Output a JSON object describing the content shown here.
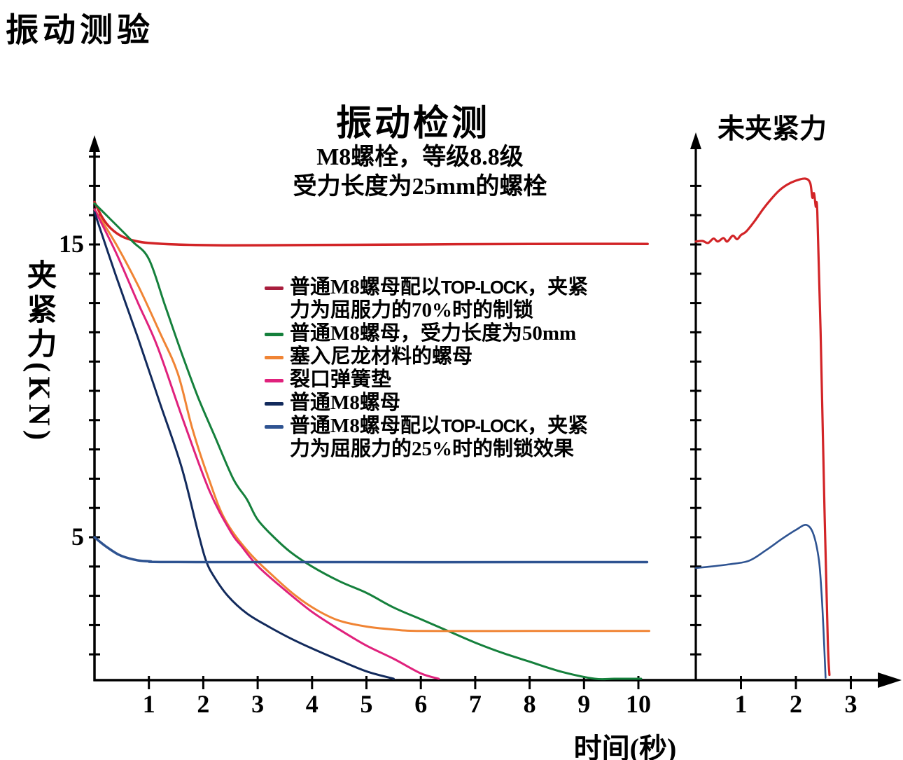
{
  "page_title": "振动测验",
  "main_chart": {
    "title": "振动检测",
    "subtitle_line1": "M8螺栓，等级8.8级",
    "subtitle_line2": "受力长度为25mm的螺栓",
    "y_axis_label": "夹紧力(KN)",
    "x_axis_label": "时间(秒)"
  },
  "right_chart": {
    "title": "未夹紧力"
  },
  "legend": {
    "rows": [
      {
        "color": "#a81e3d",
        "line1": [
          {
            "text": "普通M8螺母配以"
          },
          {
            "logo": "TOP-LOCK"
          },
          {
            "text": "，夹紧"
          }
        ],
        "line2": "力为屈服力的70%时的制锁"
      },
      {
        "color": "#15803c",
        "line1": [
          {
            "text": "普通M8螺母，受力长度为50mm"
          }
        ]
      },
      {
        "color": "#f08434",
        "line1": [
          {
            "text": "塞入尼龙材料的螺母"
          }
        ]
      },
      {
        "color": "#e0217c",
        "line1": [
          {
            "text": "裂口弹簧垫"
          }
        ]
      },
      {
        "color": "#122a5c",
        "line1": [
          {
            "text": "普通M8螺母"
          }
        ]
      },
      {
        "color": "#2e5391",
        "line1": [
          {
            "text": "普通M8螺母配以"
          },
          {
            "logo": "TOP-LOCK"
          },
          {
            "text": "，夹紧"
          }
        ],
        "line2": "力为屈服力的25%时的制锁效果"
      }
    ]
  },
  "chart_data": [
    {
      "type": "line",
      "title": "振动检测",
      "subtitle": "M8螺栓，等级8.8级 受力长度为25mm的螺栓",
      "xlabel": "时间(秒)",
      "ylabel": "夹紧力(KN)",
      "x_range": [
        0,
        10.5
      ],
      "y_range": [
        0,
        18.6
      ],
      "x_ticks": [
        1,
        2,
        3,
        4,
        5,
        6,
        7,
        8,
        9,
        10
      ],
      "y_ticks_labeled": [
        5,
        15
      ],
      "y_tick_minor_step": 1,
      "grid": false,
      "legend_position": "inside-right",
      "series": [
        {
          "name": "普通M8螺母配以TOP-LOCK，夹紧力为屈服力的70%时的制锁",
          "color": "#d22427",
          "width": 3.5,
          "points": [
            [
              0,
              16.45
            ],
            [
              0.15,
              15.9
            ],
            [
              0.3,
              15.55
            ],
            [
              0.5,
              15.28
            ],
            [
              0.75,
              15.12
            ],
            [
              1,
              15.05
            ],
            [
              1.5,
              15.0
            ],
            [
              2.5,
              14.97
            ],
            [
              4,
              14.98
            ],
            [
              6,
              15.0
            ],
            [
              8,
              15.02
            ],
            [
              10.17,
              15.02
            ]
          ]
        },
        {
          "name": "普通M8螺母，受力长度为50mm",
          "color": "#15803c",
          "width": 3,
          "points": [
            [
              0,
              16.4
            ],
            [
              0.3,
              15.85
            ],
            [
              0.7,
              15.1
            ],
            [
              1,
              14.5
            ],
            [
              1.3,
              12.9
            ],
            [
              1.6,
              11.3
            ],
            [
              1.9,
              9.8
            ],
            [
              2.2,
              8.5
            ],
            [
              2.55,
              7.0
            ],
            [
              2.8,
              6.3
            ],
            [
              3,
              5.6
            ],
            [
              3.3,
              5.0
            ],
            [
              3.6,
              4.5
            ],
            [
              4,
              4.0
            ],
            [
              4.5,
              3.5
            ],
            [
              5,
              3.1
            ],
            [
              5.5,
              2.6
            ],
            [
              6,
              2.2
            ],
            [
              6.5,
              1.8
            ],
            [
              7,
              1.4
            ],
            [
              7.5,
              1.05
            ],
            [
              8,
              0.75
            ],
            [
              8.6,
              0.4
            ],
            [
              9.2,
              0.12
            ],
            [
              9.56,
              0
            ],
            [
              10.05,
              0
            ]
          ]
        },
        {
          "name": "塞入尼龙材料的螺母",
          "color": "#f08434",
          "width": 3,
          "points": [
            [
              0,
              16.2
            ],
            [
              0.4,
              15.0
            ],
            [
              0.8,
              13.6
            ],
            [
              1.2,
              12.0
            ],
            [
              1.53,
              10.6
            ],
            [
              1.8,
              8.7
            ],
            [
              2.1,
              7.0
            ],
            [
              2.4,
              5.6
            ],
            [
              2.83,
              4.5
            ],
            [
              3.27,
              3.7
            ],
            [
              3.7,
              3.0
            ],
            [
              4.1,
              2.5
            ],
            [
              4.5,
              2.15
            ],
            [
              5,
              1.95
            ],
            [
              5.5,
              1.85
            ],
            [
              6,
              1.8
            ],
            [
              8,
              1.8
            ],
            [
              10.2,
              1.8
            ]
          ]
        },
        {
          "name": "裂口弹簧垫",
          "color": "#e0217c",
          "width": 3,
          "points": [
            [
              0,
              16.2
            ],
            [
              0.4,
              14.7
            ],
            [
              0.8,
              13.0
            ],
            [
              1.16,
              11.5
            ],
            [
              1.63,
              9.0
            ],
            [
              2.11,
              6.6
            ],
            [
              2.5,
              5.2
            ],
            [
              2.7,
              4.7
            ],
            [
              3.01,
              4.0
            ],
            [
              3.5,
              3.2
            ],
            [
              4,
              2.45
            ],
            [
              4.5,
              1.85
            ],
            [
              5,
              1.3
            ],
            [
              5.5,
              0.85
            ],
            [
              6,
              0.35
            ],
            [
              6.33,
              0
            ]
          ]
        },
        {
          "name": "普通M8螺母",
          "color": "#122a5c",
          "width": 3,
          "points": [
            [
              0,
              16.1
            ],
            [
              0.4,
              13.9
            ],
            [
              0.8,
              11.8
            ],
            [
              1.2,
              9.6
            ],
            [
              1.6,
              7.4
            ],
            [
              1.9,
              5.2
            ],
            [
              2.05,
              4.2
            ],
            [
              2.2,
              3.65
            ],
            [
              2.45,
              3.0
            ],
            [
              2.8,
              2.4
            ],
            [
              3.2,
              1.95
            ],
            [
              3.6,
              1.55
            ],
            [
              4,
              1.2
            ],
            [
              4.5,
              0.8
            ],
            [
              5,
              0.42
            ],
            [
              5.5,
              0
            ]
          ]
        },
        {
          "name": "普通M8螺母配以TOP-LOCK，夹紧力为屈服力的25%时的制锁效果",
          "color": "#2e5391",
          "width": 3.5,
          "points": [
            [
              0,
              5.0
            ],
            [
              0.2,
              4.7
            ],
            [
              0.45,
              4.4
            ],
            [
              0.7,
              4.25
            ],
            [
              1,
              4.18
            ],
            [
              2,
              4.15
            ],
            [
              10.16,
              4.15
            ]
          ]
        }
      ]
    },
    {
      "type": "line",
      "title": "未夹紧力",
      "xlabel": "时间(秒)",
      "x_range": [
        0,
        3.8
      ],
      "y_range": [
        0,
        18.6
      ],
      "x_ticks": [
        1,
        2,
        3
      ],
      "grid": false,
      "series": [
        {
          "name": "TOP-LOCK 70%",
          "color": "#d22427",
          "width": 3.2,
          "points": [
            [
              0.18,
              15.1
            ],
            [
              0.3,
              15.12
            ],
            [
              0.4,
              15.05
            ],
            [
              0.5,
              15.2
            ],
            [
              0.58,
              15.1
            ],
            [
              0.68,
              15.22
            ],
            [
              0.75,
              15.1
            ],
            [
              0.85,
              15.3
            ],
            [
              0.93,
              15.18
            ],
            [
              1.0,
              15.32
            ],
            [
              1.1,
              15.45
            ],
            [
              1.25,
              15.8
            ],
            [
              1.4,
              16.2
            ],
            [
              1.55,
              16.55
            ],
            [
              1.7,
              16.85
            ],
            [
              1.85,
              17.05
            ],
            [
              2.0,
              17.18
            ],
            [
              2.17,
              17.25
            ],
            [
              2.26,
              17.1
            ],
            [
              2.3,
              16.6
            ],
            [
              2.33,
              16.75
            ],
            [
              2.36,
              16.3
            ],
            [
              2.39,
              16.1
            ],
            [
              2.45,
              12.0
            ],
            [
              2.52,
              6.0
            ],
            [
              2.58,
              1.5
            ],
            [
              2.61,
              0.3
            ]
          ]
        },
        {
          "name": "TOP-LOCK 25%",
          "color": "#2e5391",
          "width": 2.6,
          "points": [
            [
              0.18,
              3.95
            ],
            [
              0.45,
              4.0
            ],
            [
              0.8,
              4.08
            ],
            [
              1.15,
              4.2
            ],
            [
              1.45,
              4.55
            ],
            [
              1.75,
              4.95
            ],
            [
              2.0,
              5.25
            ],
            [
              2.19,
              5.42
            ],
            [
              2.32,
              5.1
            ],
            [
              2.42,
              4.2
            ],
            [
              2.47,
              3.0
            ],
            [
              2.5,
              1.9
            ],
            [
              2.54,
              0.2
            ]
          ]
        }
      ]
    }
  ]
}
